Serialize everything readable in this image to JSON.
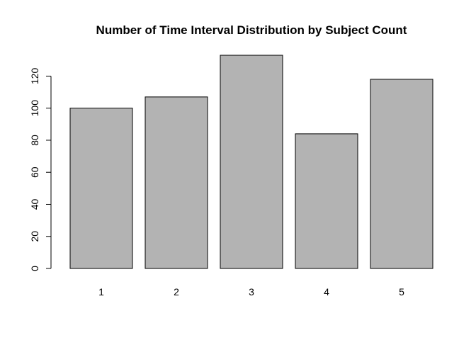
{
  "chart_data": {
    "type": "bar",
    "title": "Number of Time Interval Distribution by Subject Count",
    "xlabel": "",
    "ylabel": "",
    "categories": [
      "1",
      "2",
      "3",
      "4",
      "5"
    ],
    "values": [
      100,
      107,
      133,
      84,
      118
    ],
    "ylim": [
      0,
      140
    ],
    "yticks": [
      0,
      20,
      40,
      60,
      80,
      100,
      120
    ],
    "grid": false,
    "legend": "none",
    "bar_color": "#b3b3b3",
    "border_color": "#000000"
  }
}
